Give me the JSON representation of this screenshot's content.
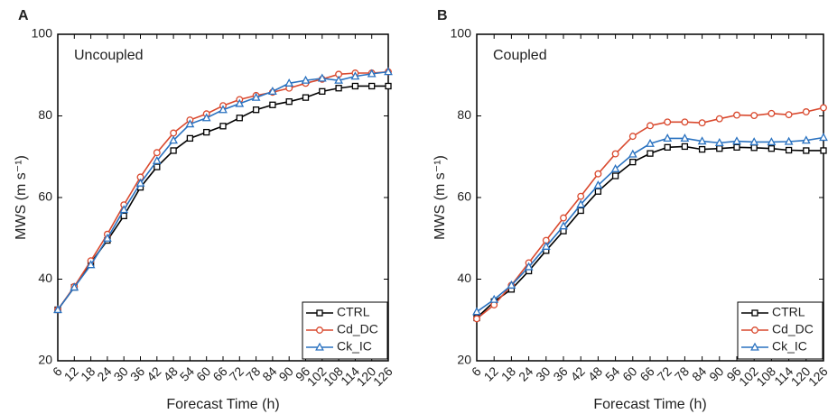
{
  "chart_data": [
    {
      "type": "line",
      "panel_label": "A",
      "annotation": "Uncoupled",
      "xlabel": "Forecast Time (h)",
      "ylabel": "MWS (m s⁻¹)",
      "x": [
        6,
        12,
        18,
        24,
        30,
        36,
        42,
        48,
        54,
        60,
        66,
        72,
        78,
        84,
        90,
        96,
        102,
        108,
        114,
        120,
        126
      ],
      "xlim": [
        6,
        126
      ],
      "xticks": [
        6,
        12,
        18,
        24,
        30,
        36,
        42,
        48,
        54,
        60,
        66,
        72,
        78,
        84,
        90,
        96,
        102,
        108,
        114,
        120,
        126
      ],
      "ylim": [
        20,
        100
      ],
      "yticks": [
        20,
        40,
        60,
        80,
        100
      ],
      "legend": "lower right",
      "series": [
        {
          "name": "CTRL",
          "color": "#000000",
          "marker": "square",
          "values": [
            32.5,
            38,
            44,
            49.5,
            55.5,
            62.5,
            67.5,
            71.5,
            74.5,
            76,
            77.5,
            79.5,
            81.5,
            82.7,
            83.5,
            84.5,
            86,
            86.8,
            87.3,
            87.3,
            87.3
          ]
        },
        {
          "name": "Cd_DC",
          "color": "#d9492e",
          "marker": "circle",
          "values": [
            32.5,
            38.2,
            44.5,
            51,
            58.2,
            65,
            71,
            75.8,
            79,
            80.5,
            82.5,
            84,
            85,
            85.8,
            86.8,
            88,
            89,
            90.2,
            90.5,
            90.5,
            90.8
          ]
        },
        {
          "name": "Ck_IC",
          "color": "#2a72c0",
          "marker": "triangle",
          "values": [
            32.5,
            38,
            43.5,
            50,
            57,
            63.5,
            69,
            74,
            78,
            79.5,
            81.5,
            83,
            84.5,
            86,
            88,
            88.7,
            89.2,
            88.7,
            89.7,
            90.3,
            90.8
          ]
        }
      ]
    },
    {
      "type": "line",
      "panel_label": "B",
      "annotation": "Coupled",
      "xlabel": "Forecast Time (h)",
      "ylabel": "MWS (m s⁻¹)",
      "x": [
        6,
        12,
        18,
        24,
        30,
        36,
        42,
        48,
        54,
        60,
        66,
        72,
        78,
        84,
        90,
        96,
        102,
        108,
        114,
        120,
        126
      ],
      "xlim": [
        6,
        126
      ],
      "xticks": [
        6,
        12,
        18,
        24,
        30,
        36,
        42,
        48,
        54,
        60,
        66,
        72,
        78,
        84,
        90,
        96,
        102,
        108,
        114,
        120,
        126
      ],
      "ylim": [
        20,
        100
      ],
      "yticks": [
        20,
        40,
        60,
        80,
        100
      ],
      "legend": "lower right",
      "series": [
        {
          "name": "CTRL",
          "color": "#000000",
          "marker": "square",
          "values": [
            30.5,
            34.5,
            37.5,
            42,
            47,
            51.8,
            56.8,
            61.5,
            65.3,
            68.7,
            70.8,
            72.3,
            72.5,
            71.8,
            72,
            72.3,
            72.2,
            72,
            71.6,
            71.5,
            71.5
          ]
        },
        {
          "name": "Cd_DC",
          "color": "#d9492e",
          "marker": "circle",
          "values": [
            30.3,
            33.7,
            38.5,
            44,
            49.5,
            55,
            60.3,
            65.8,
            70.7,
            75,
            77.6,
            78.5,
            78.5,
            78.3,
            79.3,
            80.2,
            80.1,
            80.6,
            80.3,
            81,
            82
          ]
        },
        {
          "name": "Ck_IC",
          "color": "#2a72c0",
          "marker": "triangle",
          "values": [
            32,
            35,
            38.5,
            43,
            48,
            53,
            58.3,
            63,
            67,
            70.6,
            73.2,
            74.5,
            74.5,
            73.8,
            73.4,
            73.8,
            73.6,
            73.6,
            73.7,
            74,
            74.7
          ]
        }
      ]
    }
  ]
}
